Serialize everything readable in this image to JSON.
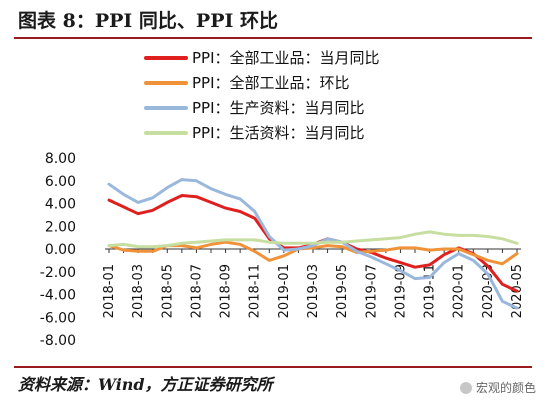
{
  "figure_title": "图表 8：PPI 同比、PPI 环比",
  "source_note": "资料来源：Wind，方正证券研究所",
  "watermark": "宏观的颜色",
  "colors": {
    "all_yoy": "#e0201f",
    "all_mom": "#f0923a",
    "production_yoy": "#9ab7dc",
    "living_yoy": "#c6dea0",
    "title_rule": "#9a1b1b"
  },
  "chart_data": {
    "type": "line",
    "title": "",
    "xlabel": "",
    "ylabel": "",
    "ylim": [
      -8,
      8
    ],
    "yticks": [
      "8.00",
      "6.00",
      "4.00",
      "2.00",
      "0.00",
      "-2.00",
      "-4.00",
      "-6.00",
      "-8.00"
    ],
    "x": [
      "2018-01",
      "2018-02",
      "2018-03",
      "2018-04",
      "2018-05",
      "2018-06",
      "2018-07",
      "2018-08",
      "2018-09",
      "2018-10",
      "2018-11",
      "2018-12",
      "2019-01",
      "2019-02",
      "2019-03",
      "2019-04",
      "2019-05",
      "2019-06",
      "2019-07",
      "2019-08",
      "2019-09",
      "2019-10",
      "2019-11",
      "2019-12",
      "2020-01",
      "2020-02",
      "2020-03",
      "2020-04",
      "2020-05"
    ],
    "xtick_labels": [
      "2018-01",
      "2018-03",
      "2018-05",
      "2018-07",
      "2018-09",
      "2018-11",
      "2019-01",
      "2019-03",
      "2019-05",
      "2019-07",
      "2019-09",
      "2019-11",
      "2020-01",
      "2020-03",
      "2020-05"
    ],
    "legend_position": "top-center",
    "grid": false,
    "series": [
      {
        "name": "PPI：全部工业品：当月同比",
        "color": "#e0201f",
        "values": [
          4.3,
          3.7,
          3.1,
          3.4,
          4.1,
          4.7,
          4.6,
          4.1,
          3.6,
          3.3,
          2.7,
          0.9,
          0.1,
          0.1,
          0.4,
          0.9,
          0.6,
          0.0,
          -0.3,
          -0.8,
          -1.2,
          -1.6,
          -1.4,
          -0.5,
          0.1,
          -0.4,
          -1.5,
          -3.1,
          -3.7
        ]
      },
      {
        "name": "PPI：全部工业品：环比",
        "color": "#f0923a",
        "values": [
          0.3,
          -0.1,
          -0.2,
          -0.2,
          0.3,
          0.3,
          0.1,
          0.4,
          0.6,
          0.4,
          -0.2,
          -1.0,
          -0.6,
          0.0,
          0.1,
          0.3,
          0.2,
          -0.3,
          -0.2,
          -0.1,
          0.1,
          0.1,
          -0.1,
          0.0,
          0.0,
          -0.5,
          -1.0,
          -1.3,
          -0.4
        ]
      },
      {
        "name": "PPI：生产资料：当月同比",
        "color": "#9ab7dc",
        "values": [
          5.7,
          4.8,
          4.1,
          4.5,
          5.4,
          6.1,
          6.0,
          5.3,
          4.8,
          4.4,
          3.3,
          1.1,
          -0.1,
          0.0,
          0.3,
          0.9,
          0.6,
          -0.2,
          -0.7,
          -1.3,
          -1.9,
          -2.6,
          -2.5,
          -1.2,
          -0.4,
          -1.0,
          -2.2,
          -4.6,
          -5.2
        ]
      },
      {
        "name": "PPI：生活资料：当月同比",
        "color": "#c6dea0",
        "values": [
          0.3,
          0.4,
          0.2,
          0.2,
          0.3,
          0.5,
          0.6,
          0.7,
          0.8,
          0.8,
          0.8,
          0.6,
          0.5,
          0.5,
          0.5,
          0.6,
          0.6,
          0.7,
          0.8,
          0.9,
          1.0,
          1.3,
          1.5,
          1.3,
          1.2,
          1.2,
          1.1,
          0.9,
          0.5
        ]
      }
    ]
  }
}
